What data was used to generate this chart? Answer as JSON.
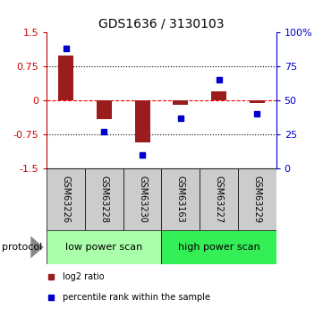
{
  "title": "GDS1636 / 3130103",
  "samples": [
    "GSM63226",
    "GSM63228",
    "GSM63230",
    "GSM63163",
    "GSM63227",
    "GSM63229"
  ],
  "log2_ratio": [
    1.0,
    -0.42,
    -0.93,
    -0.1,
    0.2,
    -0.05
  ],
  "percentile": [
    88,
    27,
    10,
    37,
    65,
    40
  ],
  "bar_color": "#9B1C1C",
  "dot_color": "#0000CC",
  "ylim_left": [
    -1.5,
    1.5
  ],
  "yticks_left": [
    -1.5,
    -0.75,
    0,
    0.75,
    1.5
  ],
  "ytick_labels_left": [
    "-1.5",
    "-0.75",
    "0",
    "0.75",
    "1.5"
  ],
  "yticks_right": [
    0,
    25,
    50,
    75,
    100
  ],
  "ytick_labels_right": [
    "0",
    "25",
    "50",
    "75",
    "100%"
  ],
  "hlines": [
    -0.75,
    0,
    0.75
  ],
  "hline_styles": [
    "dotted",
    "dashed",
    "dotted"
  ],
  "hline_colors": [
    "black",
    "red",
    "black"
  ],
  "protocol_groups": [
    {
      "label": "low power scan",
      "samples_idx": [
        0,
        1,
        2
      ],
      "color": "#AAFFAA"
    },
    {
      "label": "high power scan",
      "samples_idx": [
        3,
        4,
        5
      ],
      "color": "#33EE55"
    }
  ],
  "legend_items": [
    {
      "label": "log2 ratio",
      "color": "#9B1C1C"
    },
    {
      "label": "percentile rank within the sample",
      "color": "#0000CC"
    }
  ],
  "background_color": "#ffffff",
  "left_axis_color": "#CC0000",
  "right_axis_color": "#0000CC",
  "sample_box_color": "#CCCCCC",
  "protocol_text_fontsize": 8,
  "sample_label_fontsize": 7,
  "title_fontsize": 10,
  "legend_fontsize": 7,
  "bar_width": 0.4
}
